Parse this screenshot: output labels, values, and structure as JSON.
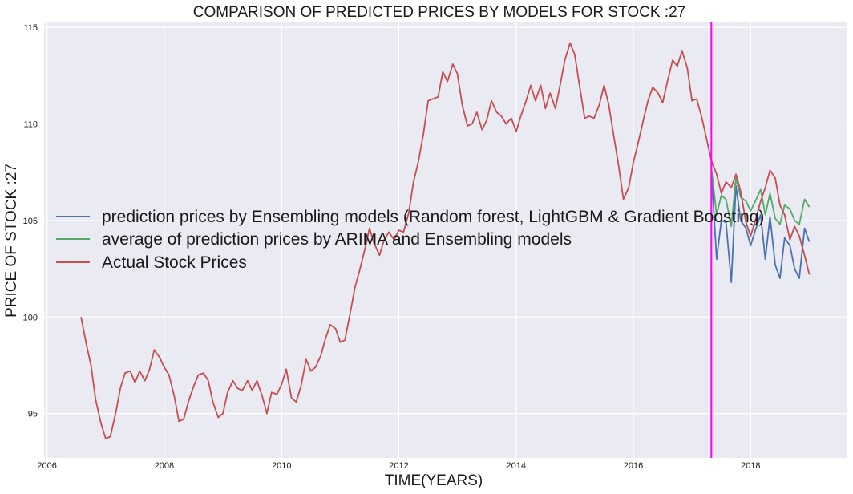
{
  "chart_data": {
    "type": "line",
    "title": "COMPARISON OF PREDICTED PRICES BY MODELS FOR STOCK :27",
    "xlabel": "TIME(YEARS)",
    "ylabel": "PRICE OF STOCK :27",
    "xlim": [
      2005.95,
      2019.65
    ],
    "ylim": [
      92.7,
      115.3
    ],
    "x_ticks": [
      2006,
      2008,
      2010,
      2012,
      2014,
      2016,
      2018
    ],
    "y_ticks": [
      95,
      100,
      105,
      110,
      115
    ],
    "grid": true,
    "legend_position": "center-left",
    "forecast_start_x": 2017.33,
    "forecast_line_color": "#ff00ff",
    "series": [
      {
        "name": "prediction prices by Ensembling models (Random forest, LightGBM & Gradient Boosting)",
        "color": "#4c72b0",
        "x": [
          2017.33,
          2017.42,
          2017.5,
          2017.58,
          2017.67,
          2017.75,
          2017.83,
          2017.92,
          2018.0,
          2018.08,
          2018.17,
          2018.25,
          2018.33,
          2018.42,
          2018.5,
          2018.58,
          2018.67,
          2018.75,
          2018.83,
          2018.92,
          2019.0
        ],
        "y": [
          107.6,
          103.0,
          105.0,
          104.9,
          101.8,
          106.8,
          105.0,
          104.6,
          103.7,
          104.5,
          105.3,
          103.0,
          105.2,
          102.7,
          102.0,
          104.1,
          103.7,
          102.5,
          102.0,
          104.6,
          103.9
        ]
      },
      {
        "name": "average of prediction prices by ARIMA and Ensembling models",
        "color": "#55a868",
        "x": [
          2017.33,
          2017.42,
          2017.5,
          2017.58,
          2017.67,
          2017.75,
          2017.83,
          2017.92,
          2018.0,
          2018.08,
          2018.17,
          2018.25,
          2018.33,
          2018.42,
          2018.5,
          2018.58,
          2018.67,
          2018.75,
          2018.83,
          2018.92,
          2019.0
        ],
        "y": [
          107.7,
          105.3,
          106.3,
          106.1,
          104.7,
          107.2,
          106.2,
          106.0,
          105.5,
          106.0,
          106.6,
          105.3,
          106.4,
          105.1,
          104.8,
          105.8,
          105.6,
          105.0,
          104.8,
          106.1,
          105.7
        ]
      },
      {
        "name": "Actual Stock Prices",
        "color": "#c44e52",
        "x": [
          2006.58,
          2006.67,
          2006.75,
          2006.83,
          2006.92,
          2007.0,
          2007.08,
          2007.17,
          2007.25,
          2007.33,
          2007.42,
          2007.5,
          2007.58,
          2007.67,
          2007.75,
          2007.83,
          2007.92,
          2008.0,
          2008.08,
          2008.17,
          2008.25,
          2008.33,
          2008.42,
          2008.5,
          2008.58,
          2008.67,
          2008.75,
          2008.83,
          2008.92,
          2009.0,
          2009.08,
          2009.17,
          2009.25,
          2009.33,
          2009.42,
          2009.5,
          2009.58,
          2009.67,
          2009.75,
          2009.83,
          2009.92,
          2010.0,
          2010.08,
          2010.17,
          2010.25,
          2010.33,
          2010.42,
          2010.5,
          2010.58,
          2010.67,
          2010.75,
          2010.83,
          2010.92,
          2011.0,
          2011.08,
          2011.17,
          2011.25,
          2011.33,
          2011.42,
          2011.5,
          2011.58,
          2011.67,
          2011.75,
          2011.83,
          2011.92,
          2012.0,
          2012.08,
          2012.17,
          2012.25,
          2012.33,
          2012.42,
          2012.5,
          2012.58,
          2012.67,
          2012.75,
          2012.83,
          2012.92,
          2013.0,
          2013.08,
          2013.17,
          2013.25,
          2013.33,
          2013.42,
          2013.5,
          2013.58,
          2013.67,
          2013.75,
          2013.83,
          2013.92,
          2014.0,
          2014.08,
          2014.17,
          2014.25,
          2014.33,
          2014.42,
          2014.5,
          2014.58,
          2014.67,
          2014.75,
          2014.83,
          2014.92,
          2015.0,
          2015.08,
          2015.17,
          2015.25,
          2015.33,
          2015.42,
          2015.5,
          2015.58,
          2015.67,
          2015.75,
          2015.83,
          2015.92,
          2016.0,
          2016.08,
          2016.17,
          2016.25,
          2016.33,
          2016.42,
          2016.5,
          2016.58,
          2016.67,
          2016.75,
          2016.83,
          2016.92,
          2017.0,
          2017.08,
          2017.17,
          2017.25,
          2017.33,
          2017.42,
          2017.5,
          2017.58,
          2017.67,
          2017.75,
          2017.83,
          2017.92,
          2018.0,
          2018.08,
          2018.17,
          2018.25,
          2018.33,
          2018.42,
          2018.5,
          2018.58,
          2018.67,
          2018.75,
          2018.83,
          2018.92,
          2019.0
        ],
        "y": [
          100.0,
          98.6,
          97.5,
          95.7,
          94.5,
          93.7,
          93.8,
          95.0,
          96.3,
          97.1,
          97.2,
          96.6,
          97.2,
          96.7,
          97.3,
          98.3,
          97.9,
          97.4,
          97.0,
          95.9,
          94.6,
          94.7,
          95.7,
          96.4,
          97.0,
          97.1,
          96.7,
          95.6,
          94.8,
          95.0,
          96.1,
          96.7,
          96.3,
          96.2,
          96.7,
          96.2,
          96.7,
          95.9,
          95.0,
          96.1,
          96.0,
          96.5,
          97.3,
          95.8,
          95.6,
          96.4,
          97.8,
          97.2,
          97.4,
          98.0,
          98.9,
          99.6,
          99.4,
          98.7,
          98.8,
          100.2,
          101.5,
          102.4,
          103.5,
          104.6,
          103.8,
          103.2,
          104.0,
          104.4,
          104.0,
          104.5,
          104.4,
          105.4,
          107.0,
          108.0,
          109.5,
          111.2,
          111.3,
          111.4,
          112.7,
          112.2,
          113.1,
          112.6,
          111.0,
          109.9,
          110.0,
          110.6,
          109.7,
          110.2,
          111.2,
          110.6,
          110.4,
          110.0,
          110.3,
          109.6,
          110.4,
          111.2,
          112.0,
          111.2,
          112.0,
          110.8,
          111.6,
          110.8,
          112.0,
          113.3,
          114.2,
          113.6,
          112.0,
          110.3,
          110.4,
          110.3,
          111.0,
          112.0,
          111.0,
          109.3,
          107.8,
          106.1,
          106.7,
          108.0,
          109.0,
          110.2,
          111.2,
          111.9,
          111.6,
          111.1,
          112.2,
          113.3,
          113.0,
          113.8,
          112.9,
          111.2,
          111.3,
          110.3,
          109.2,
          108.1,
          107.4,
          106.4,
          107.0,
          106.7,
          107.4,
          106.5,
          104.9,
          104.2,
          105.0,
          106.0,
          106.7,
          107.6,
          107.2,
          105.8,
          105.3,
          104.0,
          104.7,
          104.2,
          103.2,
          102.2
        ]
      }
    ]
  }
}
